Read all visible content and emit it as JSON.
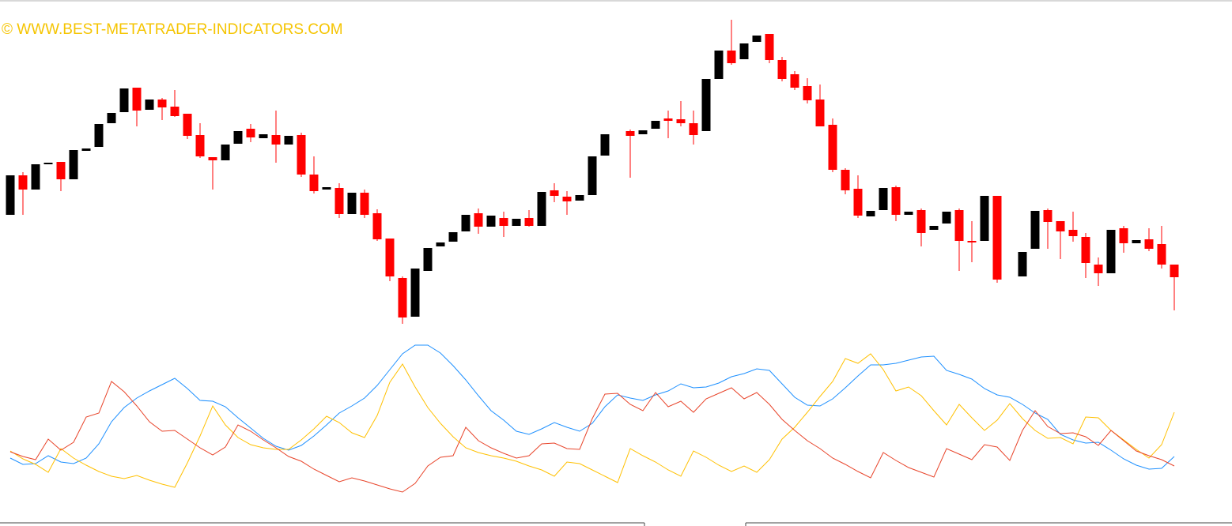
{
  "chart_data": [
    {
      "type": "candlestick",
      "annotation": "© WWW.BEST-METATRADER-INDICATORS.COM",
      "ylim": [
        0,
        420
      ],
      "up_color": "#000000",
      "down_color": "#ff0000",
      "open": [
        148,
        198,
        180,
        212,
        215,
        193,
        229,
        234,
        264,
        278,
        309,
        281,
        294,
        285,
        276,
        249,
        221,
        217,
        238,
        257,
        245,
        249,
        237,
        249,
        199,
        180,
        182,
        149,
        176,
        150,
        118,
        68,
        19,
        77,
        108,
        114,
        127,
        150,
        133,
        144,
        134,
        144,
        134,
        179,
        171,
        166,
        173,
        223,
        null,
        254,
        250,
        257,
        270,
        269,
        264,
        254,
        320,
        356,
        345,
        367,
        377,
        344,
        326,
        311,
        294,
        262,
        205,
        181,
        146,
        154,
        183,
        148,
        154,
        129,
        137,
        154,
        115,
        115,
        172,
        null,
        70,
        105,
        154,
        140,
        129,
        120,
        85,
        74,
        131,
        112,
        117,
        111,
        85
      ],
      "high": [
        198,
        202,
        212,
        214,
        215,
        230,
        232,
        263,
        277,
        308,
        309,
        294,
        296,
        306,
        276,
        264,
        221,
        237,
        254,
        263,
        250,
        280,
        248,
        252,
        222,
        183,
        188,
        176,
        180,
        155,
        118,
        70,
        80,
        106,
        113,
        126,
        148,
        156,
        147,
        152,
        143,
        154,
        177,
        188,
        178,
        173,
        222,
        250,
        null,
        256,
        255,
        267,
        280,
        292,
        280,
        320,
        356,
        395,
        365,
        375,
        377,
        348,
        330,
        321,
        313,
        270,
        207,
        198,
        153,
        182,
        185,
        152,
        156,
        134,
        152,
        156,
        140,
        172,
        172,
        null,
        101,
        153,
        156,
        140,
        152,
        125,
        94,
        129,
        134,
        116,
        131,
        134,
        85
      ],
      "low": [
        148,
        148,
        180,
        212,
        178,
        193,
        229,
        234,
        264,
        278,
        260,
        281,
        268,
        272,
        244,
        220,
        180,
        217,
        238,
        240,
        245,
        214,
        237,
        196,
        175,
        180,
        144,
        149,
        144,
        115,
        64,
        10,
        19,
        77,
        108,
        114,
        127,
        124,
        133,
        120,
        134,
        133,
        134,
        164,
        148,
        166,
        173,
        223,
        null,
        195,
        250,
        257,
        245,
        260,
        237,
        254,
        320,
        338,
        345,
        367,
        340,
        317,
        306,
        289,
        260,
        202,
        174,
        144,
        146,
        154,
        140,
        148,
        108,
        129,
        137,
        77,
        88,
        115,
        62,
        null,
        70,
        105,
        105,
        92,
        114,
        68,
        58,
        74,
        100,
        112,
        102,
        80,
        27
      ],
      "close": [
        198,
        180,
        212,
        214,
        193,
        230,
        232,
        263,
        277,
        308,
        280,
        294,
        284,
        273,
        248,
        222,
        217,
        237,
        254,
        246,
        250,
        237,
        248,
        199,
        178,
        183,
        149,
        176,
        148,
        117,
        70,
        18,
        80,
        106,
        113,
        126,
        148,
        133,
        147,
        134,
        143,
        134,
        177,
        172,
        165,
        173,
        222,
        250,
        null,
        248,
        255,
        267,
        267,
        264,
        249,
        320,
        356,
        340,
        365,
        375,
        344,
        320,
        309,
        293,
        260,
        205,
        179,
        147,
        153,
        182,
        148,
        152,
        125,
        134,
        152,
        115,
        113,
        172,
        66,
        null,
        101,
        153,
        139,
        127,
        121,
        87,
        74,
        129,
        112,
        116,
        105,
        85,
        69
      ]
    },
    {
      "type": "line",
      "ylim": [
        0,
        230
      ],
      "series": [
        {
          "color": "#1e90ff",
          "values": [
            70,
            62,
            63,
            73,
            65,
            63,
            70,
            88,
            116,
            134,
            146,
            155,
            163,
            171,
            158,
            143,
            142,
            135,
            121,
            108,
            95,
            85,
            80,
            86,
            98,
            112,
            127,
            136,
            146,
            162,
            182,
            202,
            213,
            213,
            203,
            187,
            169,
            149,
            130,
            118,
            104,
            100,
            107,
            115,
            109,
            104,
            114,
            135,
            150,
            146,
            143,
            150,
            155,
            164,
            159,
            160,
            165,
            173,
            177,
            183,
            181,
            164,
            147,
            137,
            136,
            145,
            159,
            174,
            188,
            188,
            190,
            194,
            198,
            199,
            181,
            176,
            170,
            158,
            150,
            147,
            138,
            127,
            119,
            100,
            93,
            89,
            90,
            80,
            69,
            61,
            56,
            57,
            72
          ]
        },
        {
          "color": "#ffc000",
          "values": [
            79,
            69,
            62,
            52,
            82,
            70,
            61,
            53,
            47,
            44,
            48,
            42,
            37,
            33,
            64,
            98,
            136,
            112,
            96,
            87,
            83,
            81,
            81,
            93,
            107,
            123,
            115,
            102,
            96,
            124,
            166,
            189,
            160,
            134,
            114,
            97,
            83,
            77,
            73,
            70,
            66,
            60,
            55,
            47,
            65,
            63,
            55,
            47,
            39,
            82,
            73,
            65,
            55,
            47,
            79,
            71,
            61,
            53,
            60,
            52,
            68,
            94,
            109,
            128,
            148,
            167,
            196,
            190,
            202,
            182,
            155,
            160,
            149,
            130,
            112,
            138,
            121,
            105,
            118,
            139,
            120,
            105,
            95,
            96,
            88,
            122,
            121,
            105,
            93,
            81,
            70,
            87,
            128
          ]
        },
        {
          "color": "#e8442a",
          "values": [
            78,
            72,
            68,
            94,
            80,
            90,
            122,
            127,
            167,
            154,
            136,
            116,
            104,
            105,
            94,
            83,
            74,
            84,
            112,
            104,
            93,
            83,
            72,
            66,
            56,
            48,
            40,
            45,
            41,
            36,
            31,
            27,
            38,
            60,
            71,
            73,
            109,
            92,
            83,
            76,
            70,
            73,
            88,
            89,
            82,
            81,
            120,
            151,
            152,
            138,
            130,
            153,
            135,
            142,
            128,
            145,
            152,
            159,
            145,
            153,
            138,
            119,
            105,
            92,
            82,
            70,
            62,
            53,
            45,
            77,
            67,
            58,
            52,
            46,
            82,
            75,
            68,
            87,
            84,
            67,
            105,
            130,
            110,
            101,
            102,
            97,
            86,
            105,
            92,
            79,
            73,
            68,
            60
          ]
        }
      ]
    }
  ]
}
